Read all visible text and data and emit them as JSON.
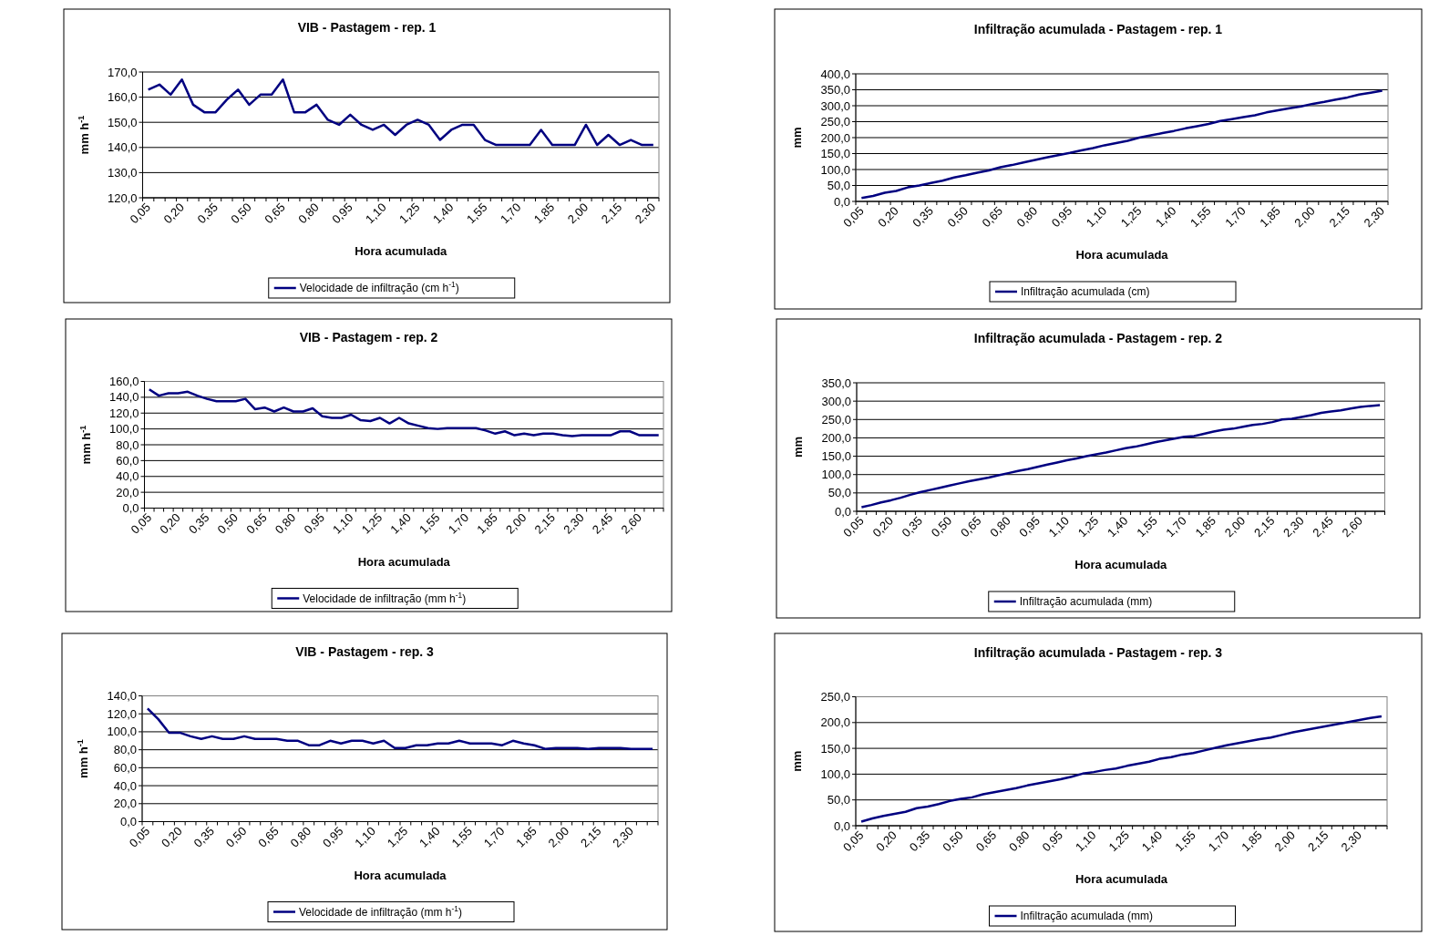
{
  "chart_data": [
    {
      "type": "line",
      "title": "VIB - Pastagem - rep. 1",
      "xlabel": "Hora acumulada",
      "ylabel": "mm h$^{-1}$",
      "categories": [
        "0,05",
        null,
        null,
        "0,20",
        null,
        null,
        "0,35",
        null,
        null,
        "0,50",
        null,
        null,
        "0,65",
        null,
        null,
        "0,80",
        null,
        null,
        "0,95",
        null,
        null,
        "1,10",
        null,
        null,
        "1,25",
        null,
        null,
        "1,40",
        null,
        null,
        "1,55",
        null,
        null,
        "1,70",
        null,
        null,
        "1,85",
        null,
        null,
        "2,00",
        null,
        null,
        "2,15",
        null,
        null,
        "2,30"
      ],
      "series": [
        {
          "name": "Velocidade de infiltração (cm h$^{-1}$)",
          "color": "#000080",
          "values": [
            163,
            165,
            161,
            167,
            157,
            154,
            154,
            159,
            163,
            157,
            161,
            161,
            167,
            154,
            154,
            157,
            151,
            149,
            153,
            149,
            147,
            149,
            145,
            149,
            151,
            149,
            143,
            147,
            149,
            149,
            143,
            141,
            141,
            141,
            141,
            147,
            141,
            141,
            141,
            149,
            141,
            145,
            141,
            143,
            141,
            141
          ]
        }
      ],
      "ylim": [
        120,
        170
      ],
      "yticks": [
        {
          "value": 120,
          "label": "120,0"
        },
        {
          "value": 130,
          "label": "130,0"
        },
        {
          "value": 140,
          "label": "140,0"
        },
        {
          "value": 150,
          "label": "150,0"
        },
        {
          "value": 160,
          "label": "160,0"
        },
        {
          "value": 170,
          "label": "170,0"
        }
      ],
      "grid": "y",
      "legend": "bottom"
    },
    {
      "type": "line",
      "title": "Infiltração acumulada - Pastagem - rep. 1",
      "xlabel": "Hora acumulada",
      "ylabel": "mm",
      "categories": [
        "0,05",
        null,
        null,
        "0,20",
        null,
        null,
        "0,35",
        null,
        null,
        "0,50",
        null,
        null,
        "0,65",
        null,
        null,
        "0,80",
        null,
        null,
        "0,95",
        null,
        null,
        "1,10",
        null,
        null,
        "1,25",
        null,
        null,
        "1,40",
        null,
        null,
        "1,55",
        null,
        null,
        "1,70",
        null,
        null,
        "1,85",
        null,
        null,
        "2,00",
        null,
        null,
        "2,15",
        null,
        null,
        "2,30"
      ],
      "series": [
        {
          "name": "Infiltração acumulada (cm)",
          "color": "#000080",
          "values": [
            11,
            17,
            27,
            33,
            44,
            50,
            58,
            65,
            75,
            82,
            90,
            97,
            107,
            114,
            122,
            130,
            138,
            145,
            152,
            160,
            167,
            176,
            183,
            190,
            200,
            207,
            214,
            221,
            229,
            236,
            243,
            252,
            258,
            264,
            270,
            279,
            286,
            292,
            298,
            306,
            312,
            319,
            326,
            335,
            341,
            347
          ]
        }
      ],
      "ylim": [
        0,
        400
      ],
      "yticks": [
        {
          "value": 0,
          "label": "0,0"
        },
        {
          "value": 50,
          "label": "50,0"
        },
        {
          "value": 100,
          "label": "100,0"
        },
        {
          "value": 150,
          "label": "150,0"
        },
        {
          "value": 200,
          "label": "200,0"
        },
        {
          "value": 250,
          "label": "250,0"
        },
        {
          "value": 300,
          "label": "300,0"
        },
        {
          "value": 350,
          "label": "350,0"
        },
        {
          "value": 400,
          "label": "400,0"
        }
      ],
      "grid": "y",
      "legend": "bottom"
    },
    {
      "type": "line",
      "title": "VIB - Pastagem  - rep. 2",
      "xlabel": "Hora acumulada",
      "ylabel": "mm h$^{-1}$",
      "categories": [
        "0,05",
        null,
        null,
        "0,20",
        null,
        null,
        "0,35",
        null,
        null,
        "0,50",
        null,
        null,
        "0,65",
        null,
        null,
        "0,80",
        null,
        null,
        "0,95",
        null,
        null,
        "1,10",
        null,
        null,
        "1,25",
        null,
        null,
        "1,40",
        null,
        null,
        "1,55",
        null,
        null,
        "1,70",
        null,
        null,
        "1,85",
        null,
        null,
        "2,00",
        null,
        null,
        "2,15",
        null,
        null,
        "2,30",
        null,
        null,
        "2,45",
        null,
        null,
        "2,60",
        null,
        null
      ],
      "series": [
        {
          "name": "Velocidade de infiltração (mm h$^{-1}$)",
          "color": "#000080",
          "values": [
            150,
            142,
            145,
            145,
            147,
            142,
            138,
            135,
            135,
            135,
            138,
            125,
            127,
            122,
            127,
            122,
            122,
            126,
            116,
            114,
            114,
            118,
            111,
            110,
            114,
            107,
            114,
            107,
            104,
            101,
            100,
            101,
            101,
            101,
            101,
            98,
            94,
            97,
            92,
            94,
            92,
            94,
            94,
            92,
            91,
            92,
            92,
            92,
            92,
            97,
            97,
            92,
            92,
            92
          ]
        }
      ],
      "ylim": [
        0,
        160
      ],
      "yticks": [
        {
          "value": 0,
          "label": "0,0"
        },
        {
          "value": 20,
          "label": "20,0"
        },
        {
          "value": 40,
          "label": "40,0"
        },
        {
          "value": 60,
          "label": "60,0"
        },
        {
          "value": 80,
          "label": "80,0"
        },
        {
          "value": 100,
          "label": "100,0"
        },
        {
          "value": 120,
          "label": "120,0"
        },
        {
          "value": 140,
          "label": "140,0"
        },
        {
          "value": 160,
          "label": "160,0"
        }
      ],
      "grid": "y",
      "legend": "bottom"
    },
    {
      "type": "line",
      "title": "Infiltração acumulada - Pastagem - rep. 2",
      "xlabel": "Hora acumulada",
      "ylabel": "mm",
      "categories": [
        "0,05",
        null,
        null,
        "0,20",
        null,
        null,
        "0,35",
        null,
        null,
        "0,50",
        null,
        null,
        "0,65",
        null,
        null,
        "0,80",
        null,
        null,
        "0,95",
        null,
        null,
        "1,10",
        null,
        null,
        "1,25",
        null,
        null,
        "1,40",
        null,
        null,
        "1,55",
        null,
        null,
        "1,70",
        null,
        null,
        "1,85",
        null,
        null,
        "2,00",
        null,
        null,
        "2,15",
        null,
        null,
        "2,30",
        null,
        null,
        "2,45",
        null,
        null,
        "2,60",
        null,
        null
      ],
      "series": [
        {
          "name": "Infiltração acumulada (mm)",
          "color": "#000080",
          "values": [
            11,
            17,
            24,
            30,
            37,
            45,
            52,
            58,
            64,
            70,
            76,
            82,
            87,
            92,
            98,
            104,
            110,
            115,
            121,
            127,
            133,
            139,
            144,
            150,
            155,
            160,
            166,
            172,
            176,
            182,
            188,
            193,
            198,
            203,
            205,
            211,
            217,
            222,
            225,
            230,
            235,
            238,
            243,
            250,
            252,
            257,
            262,
            268,
            272,
            275,
            280,
            284,
            287,
            289
          ]
        }
      ],
      "ylim": [
        0,
        350
      ],
      "yticks": [
        {
          "value": 0,
          "label": "0,0"
        },
        {
          "value": 50,
          "label": "50,0"
        },
        {
          "value": 100,
          "label": "100,0"
        },
        {
          "value": 150,
          "label": "150,0"
        },
        {
          "value": 200,
          "label": "200,0"
        },
        {
          "value": 250,
          "label": "250,0"
        },
        {
          "value": 300,
          "label": "300,0"
        },
        {
          "value": 350,
          "label": "350,0"
        }
      ],
      "grid": "y",
      "legend": "bottom"
    },
    {
      "type": "line",
      "title": "VIB - Pastagem - rep. 3",
      "xlabel": "Hora acumulada",
      "ylabel": "mm h$^{-1}$",
      "categories": [
        "0,05",
        null,
        null,
        "0,20",
        null,
        null,
        "0,35",
        null,
        null,
        "0,50",
        null,
        null,
        "0,65",
        null,
        null,
        "0,80",
        null,
        null,
        "0,95",
        null,
        null,
        "1,10",
        null,
        null,
        "1,25",
        null,
        null,
        "1,40",
        null,
        null,
        "1,55",
        null,
        null,
        "1,70",
        null,
        null,
        "1,85",
        null,
        null,
        "2,00",
        null,
        null,
        "2,15",
        null,
        null,
        "2,30",
        null,
        null
      ],
      "series": [
        {
          "name": "Velocidade de infiltração (mm h$^{-1}$)",
          "color": "#000080",
          "values": [
            126,
            114,
            99,
            99,
            95,
            92,
            95,
            92,
            92,
            95,
            92,
            92,
            92,
            90,
            90,
            85,
            85,
            90,
            87,
            90,
            90,
            87,
            90,
            82,
            82,
            85,
            85,
            87,
            87,
            90,
            87,
            87,
            87,
            85,
            90,
            87,
            85,
            81,
            82,
            82,
            82,
            81,
            82,
            82,
            82,
            81,
            81,
            81
          ]
        }
      ],
      "ylim": [
        0,
        140
      ],
      "yticks": [
        {
          "value": 0,
          "label": "0,0"
        },
        {
          "value": 20,
          "label": "20,0"
        },
        {
          "value": 40,
          "label": "40,0"
        },
        {
          "value": 60,
          "label": "60,0"
        },
        {
          "value": 80,
          "label": "80,0"
        },
        {
          "value": 100,
          "label": "100,0"
        },
        {
          "value": 120,
          "label": "120,0"
        },
        {
          "value": 140,
          "label": "140,0"
        }
      ],
      "grid": "y",
      "legend": "bottom"
    },
    {
      "type": "line",
      "title": "Infiltração acumulada - Pastagem - rep. 3",
      "xlabel": "Hora acumulada",
      "ylabel": "mm",
      "categories": [
        "0,05",
        null,
        null,
        "0,20",
        null,
        null,
        "0,35",
        null,
        null,
        "0,50",
        null,
        null,
        "0,65",
        null,
        null,
        "0,80",
        null,
        null,
        "0,95",
        null,
        null,
        "1,10",
        null,
        null,
        "1,25",
        null,
        null,
        "1,40",
        null,
        null,
        "1,55",
        null,
        null,
        "1,70",
        null,
        null,
        "1,85",
        null,
        null,
        "2,00",
        null,
        null,
        "2,15",
        null,
        null,
        "2,30",
        null,
        null
      ],
      "series": [
        {
          "name": "Infiltração acumulada (mm)",
          "color": "#000080",
          "values": [
            8,
            14,
            19,
            23,
            27,
            34,
            37,
            42,
            48,
            52,
            55,
            61,
            65,
            69,
            73,
            78,
            82,
            86,
            90,
            95,
            101,
            104,
            108,
            111,
            116,
            120,
            124,
            130,
            133,
            138,
            141,
            146,
            151,
            156,
            160,
            164,
            168,
            171,
            176,
            181,
            185,
            189,
            193,
            197,
            201,
            205,
            209,
            212
          ]
        }
      ],
      "ylim": [
        0,
        250
      ],
      "yticks": [
        {
          "value": 0,
          "label": "0,0"
        },
        {
          "value": 50,
          "label": "50,0"
        },
        {
          "value": 100,
          "label": "100,0"
        },
        {
          "value": 150,
          "label": "150,0"
        },
        {
          "value": 200,
          "label": "200,0"
        },
        {
          "value": 250,
          "label": "250,0"
        }
      ],
      "grid": "y",
      "legend": "bottom"
    }
  ]
}
